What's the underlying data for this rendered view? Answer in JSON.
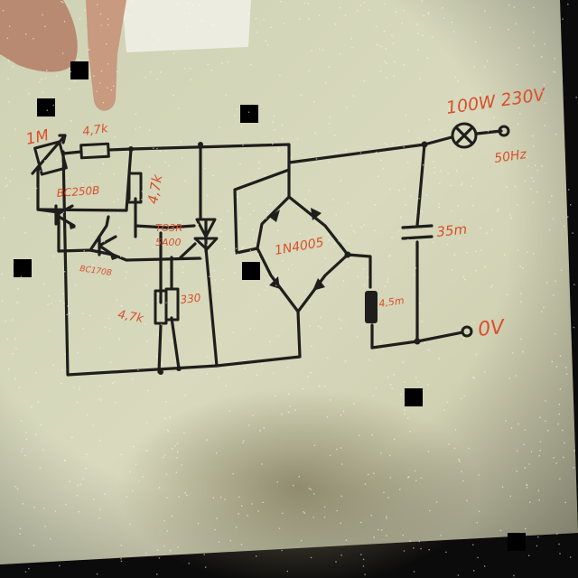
{
  "diagram": {
    "title": "",
    "labels": {
      "pot": "1M",
      "r_top": "4,7k",
      "r_mid": "4,7k",
      "q_upper": "BC250B",
      "q_lower": "BC170B",
      "triac": "TO3R\n5A00",
      "r_low": "4,7k",
      "r_330": "330",
      "bridge": "1N4005",
      "choke": "4,5m",
      "cap": "35m",
      "lamp": "100W 230V",
      "freq": "50Hz",
      "ground": "0V"
    }
  }
}
